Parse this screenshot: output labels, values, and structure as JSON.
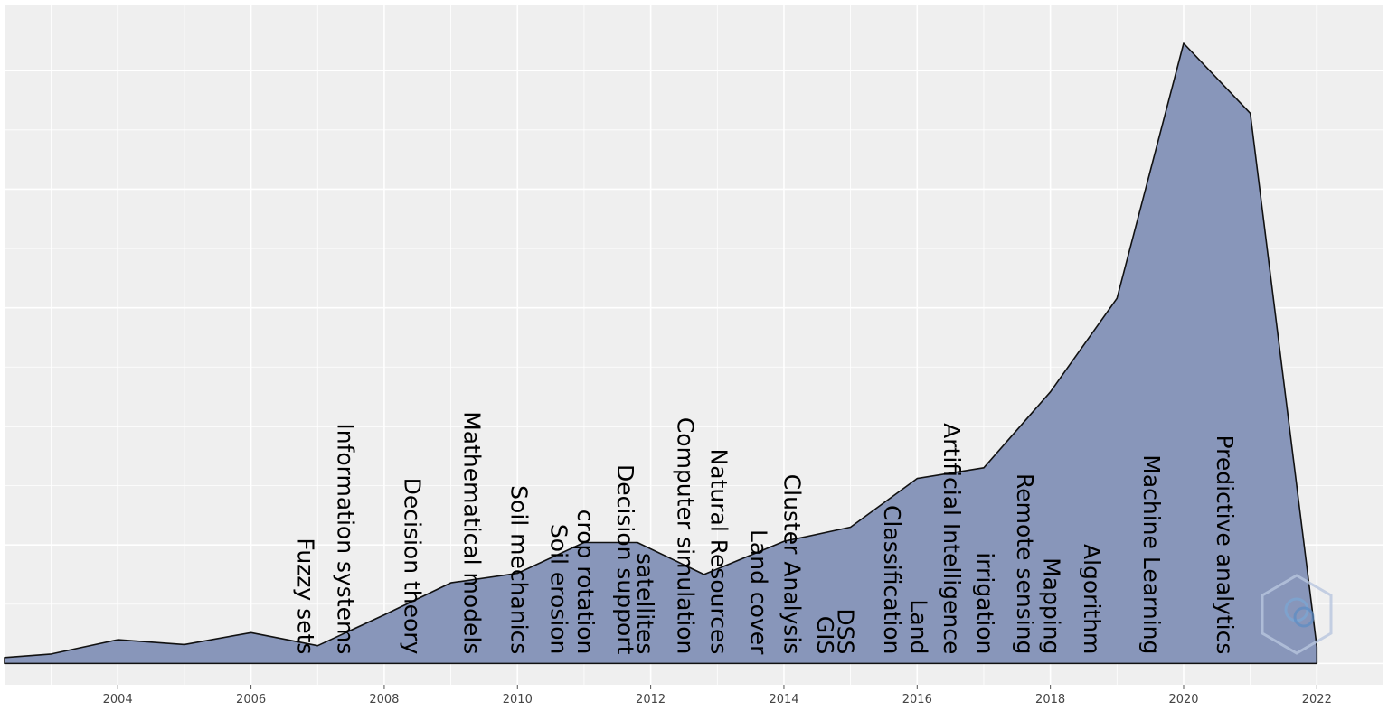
{
  "chart_data": {
    "type": "area",
    "title": "",
    "xlabel": "",
    "ylabel": "",
    "x": [
      2002.3,
      2003,
      2004,
      2005,
      2006,
      2007,
      2008,
      2009,
      2010,
      2011,
      2011.8,
      2012.8,
      2014,
      2015,
      2016,
      2017,
      2018,
      2019,
      2020,
      2021,
      2022
    ],
    "values": [
      0.5,
      0.8,
      2.0,
      1.6,
      2.6,
      1.5,
      4.1,
      6.8,
      7.6,
      10.2,
      10.2,
      7.5,
      10.3,
      11.5,
      15.6,
      16.5,
      22.9,
      30.8,
      52.3,
      46.4,
      1.4
    ],
    "xlim": [
      2002.3,
      2023
    ],
    "ylim": [
      -1.8,
      55.5
    ],
    "x_ticks": [
      "2004",
      "2006",
      "2008",
      "2010",
      "2012",
      "2014",
      "2016",
      "2018",
      "2020",
      "2022"
    ],
    "y_gridlines": [
      0,
      10,
      20,
      30,
      40,
      50
    ],
    "grid": true,
    "fill_color": "#8896ba",
    "line_color": "#111111",
    "panel_color": "#efefef",
    "grid_color": "#ffffff",
    "annotations": [
      {
        "text": "Fuzzy sets",
        "x": 2006.8
      },
      {
        "text": "Information systems",
        "x": 2007.4
      },
      {
        "text": "Decision theory",
        "x": 2008.4
      },
      {
        "text": "Mathematical models",
        "x": 2009.3
      },
      {
        "text": "Soil mechanics",
        "x": 2010
      },
      {
        "text": "Soil erosion",
        "x": 2010.6
      },
      {
        "text": "crop rotation",
        "x": 2011
      },
      {
        "text": "Decision support",
        "x": 2011.6
      },
      {
        "text": "satellites",
        "x": 2011.9
      },
      {
        "text": "Computer simulation",
        "x": 2012.5
      },
      {
        "text": "Natural Resources",
        "x": 2013
      },
      {
        "text": "Land cover",
        "x": 2013.6
      },
      {
        "text": "Cluster Analysis",
        "x": 2014.1
      },
      {
        "text": "GIS",
        "x": 2014.6
      },
      {
        "text": "DSS",
        "x": 2014.9
      },
      {
        "text": "Classification",
        "x": 2015.6
      },
      {
        "text": "Land",
        "x": 2016
      },
      {
        "text": "Artificial Intelligence",
        "x": 2016.5
      },
      {
        "text": "irrigation",
        "x": 2017
      },
      {
        "text": "Remote sensing",
        "x": 2017.6
      },
      {
        "text": "Mapping",
        "x": 2018
      },
      {
        "text": "Algorithm",
        "x": 2018.6
      },
      {
        "text": "Machine Learning",
        "x": 2019.5
      },
      {
        "text": "Predictive analytics",
        "x": 2020.6
      }
    ]
  }
}
